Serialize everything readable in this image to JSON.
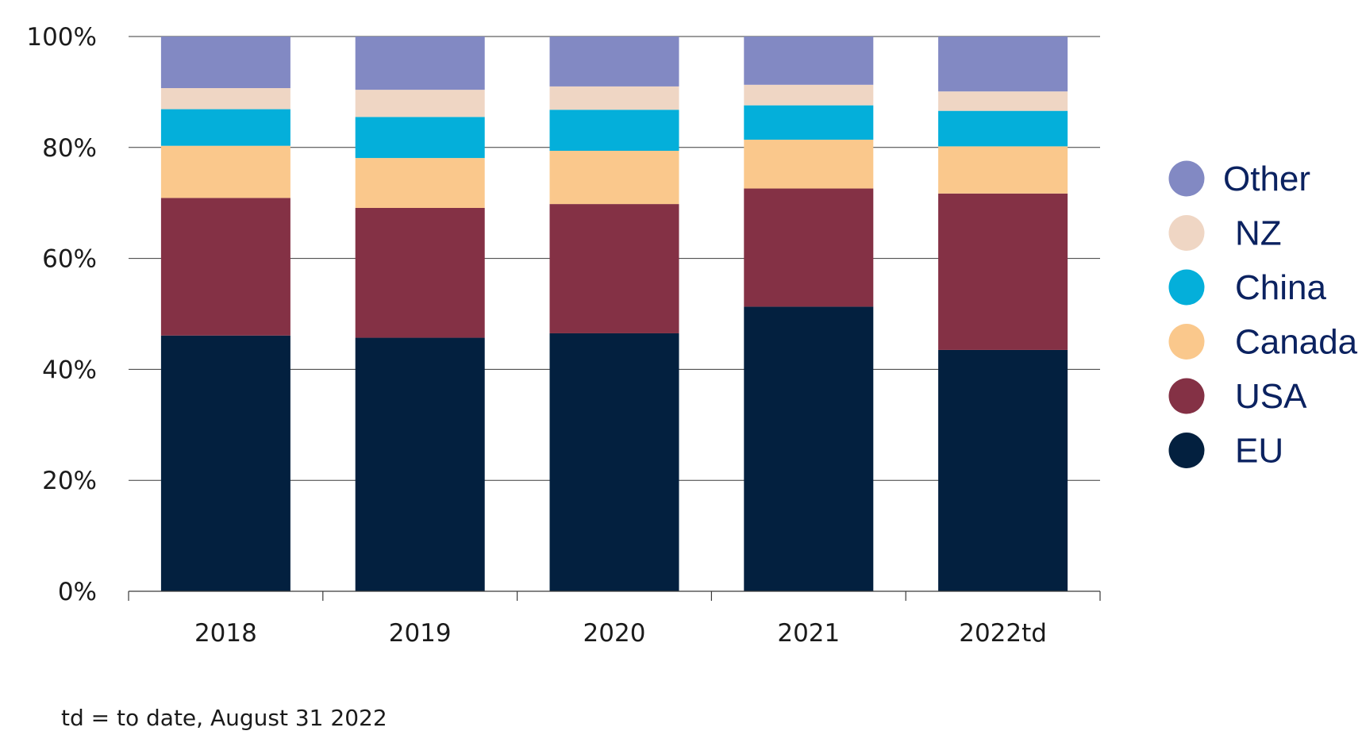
{
  "chart_data": {
    "type": "bar",
    "stacked": true,
    "categories": [
      "2018",
      "2019",
      "2020",
      "2021",
      "2022td"
    ],
    "series": [
      {
        "name": "EU",
        "color": "#03203f",
        "values": [
          46.1,
          45.7,
          46.5,
          51.3,
          43.5
        ]
      },
      {
        "name": "USA",
        "color": "#843145",
        "values": [
          24.8,
          23.4,
          23.3,
          21.3,
          28.2
        ]
      },
      {
        "name": "Canada",
        "color": "#fac88c",
        "values": [
          9.4,
          9.0,
          9.6,
          8.8,
          8.5
        ]
      },
      {
        "name": "China",
        "color": "#04afda",
        "values": [
          6.6,
          7.4,
          7.4,
          6.2,
          6.4
        ]
      },
      {
        "name": "NZ",
        "color": "#efd6c4",
        "values": [
          3.8,
          4.9,
          4.2,
          3.7,
          3.5
        ]
      },
      {
        "name": "Other",
        "color": "#8289c3",
        "values": [
          9.3,
          9.6,
          9.0,
          8.7,
          9.9
        ]
      }
    ],
    "ylim": [
      0,
      100
    ],
    "yticks": [
      "0%",
      "20%",
      "40%",
      "60%",
      "80%",
      "100%"
    ],
    "grid": true,
    "legend_position": "right",
    "xlabel": "",
    "ylabel": "",
    "title": ""
  },
  "footnote": "td = to date, August 31 2022"
}
